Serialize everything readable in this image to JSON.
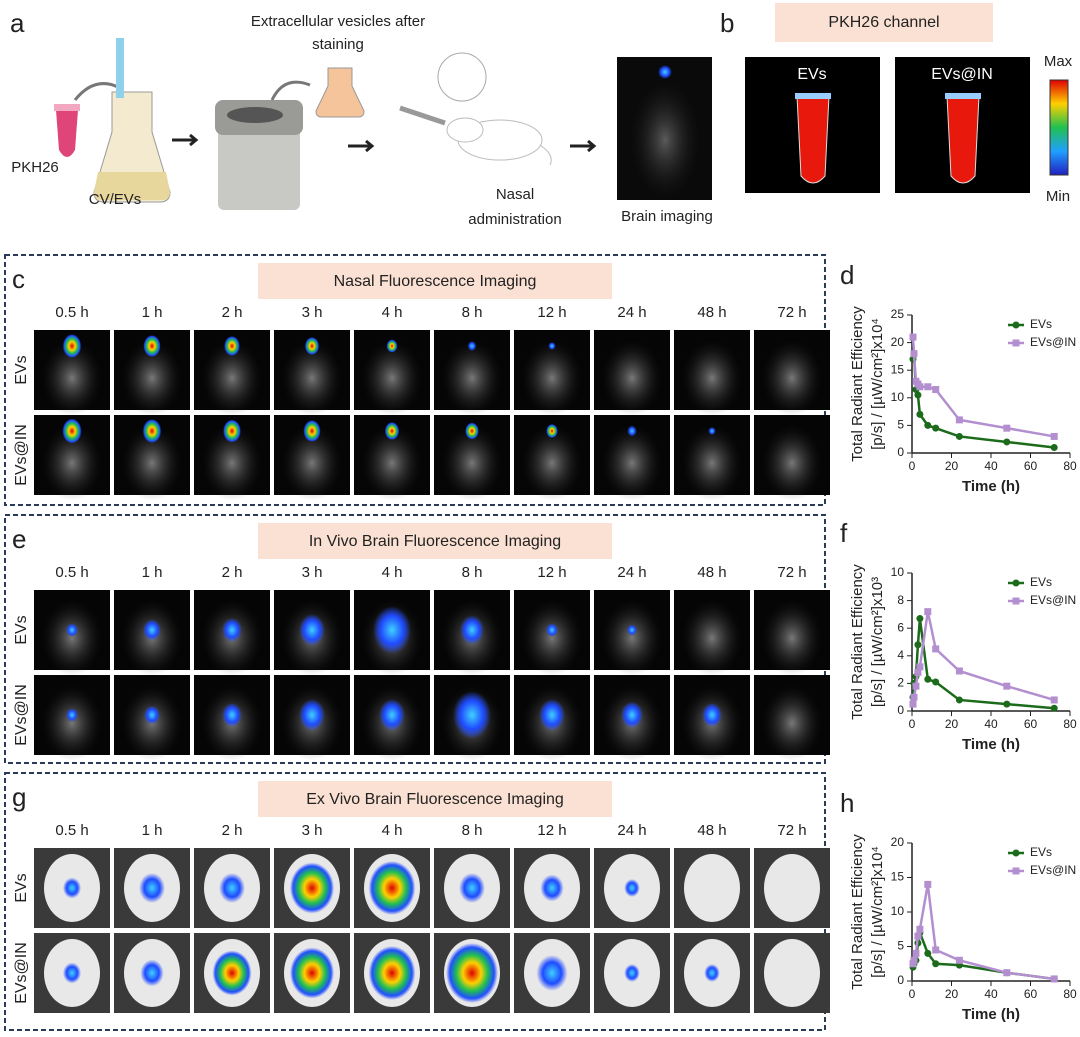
{
  "panel_a": {
    "label": "a",
    "vesicles": [
      "Extracellular vesicles after",
      "staining"
    ],
    "dye": "PKH26",
    "sample": "CV/EVs",
    "route": [
      "Nasal",
      "administration"
    ],
    "readout": "Brain imaging"
  },
  "panel_b": {
    "label": "b",
    "title": "PKH26 channel",
    "groups": [
      "EVs",
      "EVs@IN"
    ],
    "scale_max": "Max",
    "scale_min": "Min"
  },
  "panel_c": {
    "label": "c",
    "title": "Nasal Fluorescence Imaging",
    "times": [
      "0.5 h",
      "1 h",
      "2 h",
      "3 h",
      "4 h",
      "8 h",
      "12 h",
      "24 h",
      "48 h",
      "72 h"
    ],
    "rows": [
      "EVs",
      "EVs@IN"
    ]
  },
  "panel_e": {
    "label": "e",
    "title": "In Vivo Brain Fluorescence Imaging",
    "times": [
      "0.5 h",
      "1 h",
      "2 h",
      "3 h",
      "4 h",
      "8 h",
      "12 h",
      "24 h",
      "48 h",
      "72 h"
    ],
    "rows": [
      "EVs",
      "EVs@IN"
    ]
  },
  "panel_g": {
    "label": "g",
    "title": "Ex Vivo Brain Fluorescence Imaging",
    "times": [
      "0.5 h",
      "1 h",
      "2 h",
      "3 h",
      "4 h",
      "8 h",
      "12 h",
      "24 h",
      "48 h",
      "72 h"
    ],
    "rows": [
      "EVs",
      "EVs@IN"
    ]
  },
  "chart_data": [
    {
      "type": "line",
      "panel": "d",
      "xlabel": "Time (h)",
      "ylabel": [
        "Total Radiant Efficiency",
        "[p/s] / [µW/cm²]x10⁴"
      ],
      "x": [
        0.5,
        1,
        2,
        3,
        4,
        8,
        12,
        24,
        48,
        72
      ],
      "series": [
        {
          "name": "EVs",
          "color": "#1b6b1b",
          "marker": "circle",
          "values": [
            17,
            18,
            11.5,
            10.5,
            7,
            5,
            4.5,
            3,
            2,
            1
          ]
        },
        {
          "name": "EVs@IN",
          "color": "#b48fd0",
          "marker": "square",
          "values": [
            21,
            18,
            13,
            12.5,
            12,
            12,
            11.5,
            6,
            4.5,
            3
          ]
        }
      ],
      "xlim": [
        0,
        80
      ],
      "xticks": [
        0,
        20,
        40,
        60,
        80
      ],
      "ylim": [
        0,
        25
      ],
      "yticks": [
        0,
        5,
        10,
        15,
        20,
        25
      ],
      "legend": "upper right"
    },
    {
      "type": "line",
      "panel": "f",
      "xlabel": "Time (h)",
      "ylabel": [
        "Total Radiant Efficiency",
        "[p/s] / [µW/cm²]x10³"
      ],
      "x": [
        0.5,
        1,
        2,
        3,
        4,
        8,
        12,
        24,
        48,
        72
      ],
      "series": [
        {
          "name": "EVs",
          "color": "#1b6b1b",
          "marker": "circle",
          "values": [
            1,
            2,
            2.5,
            4.8,
            6.7,
            2.3,
            2.1,
            0.8,
            0.5,
            0.2
          ]
        },
        {
          "name": "EVs@IN",
          "color": "#b48fd0",
          "marker": "square",
          "values": [
            0.5,
            1,
            1.8,
            2.8,
            3.2,
            7.2,
            4.5,
            2.9,
            1.8,
            0.8
          ]
        }
      ],
      "xlim": [
        0,
        80
      ],
      "xticks": [
        0,
        20,
        40,
        60,
        80
      ],
      "ylim": [
        0,
        10
      ],
      "yticks": [
        0,
        2,
        4,
        6,
        8,
        10
      ],
      "legend": "upper right"
    },
    {
      "type": "line",
      "panel": "h",
      "xlabel": "Time (h)",
      "ylabel": [
        "Total Radiant Efficiency",
        "[p/s] / [µW/cm²]x10⁴"
      ],
      "x": [
        0.5,
        1,
        2,
        3,
        4,
        8,
        12,
        24,
        48,
        72
      ],
      "series": [
        {
          "name": "EVs",
          "color": "#1b6b1b",
          "marker": "circle",
          "values": [
            2,
            2.5,
            3,
            5.5,
            7,
            4,
            2.5,
            2.3,
            1.2,
            0.3
          ]
        },
        {
          "name": "EVs@IN",
          "color": "#b48fd0",
          "marker": "square",
          "values": [
            2.5,
            3,
            4,
            6.5,
            7.5,
            14,
            4.5,
            3,
            1.2,
            0.3
          ]
        }
      ],
      "xlim": [
        0,
        80
      ],
      "xticks": [
        0,
        20,
        40,
        60,
        80
      ],
      "ylim": [
        0,
        20
      ],
      "yticks": [
        0,
        5,
        10,
        15,
        20
      ],
      "legend": "upper right"
    }
  ]
}
